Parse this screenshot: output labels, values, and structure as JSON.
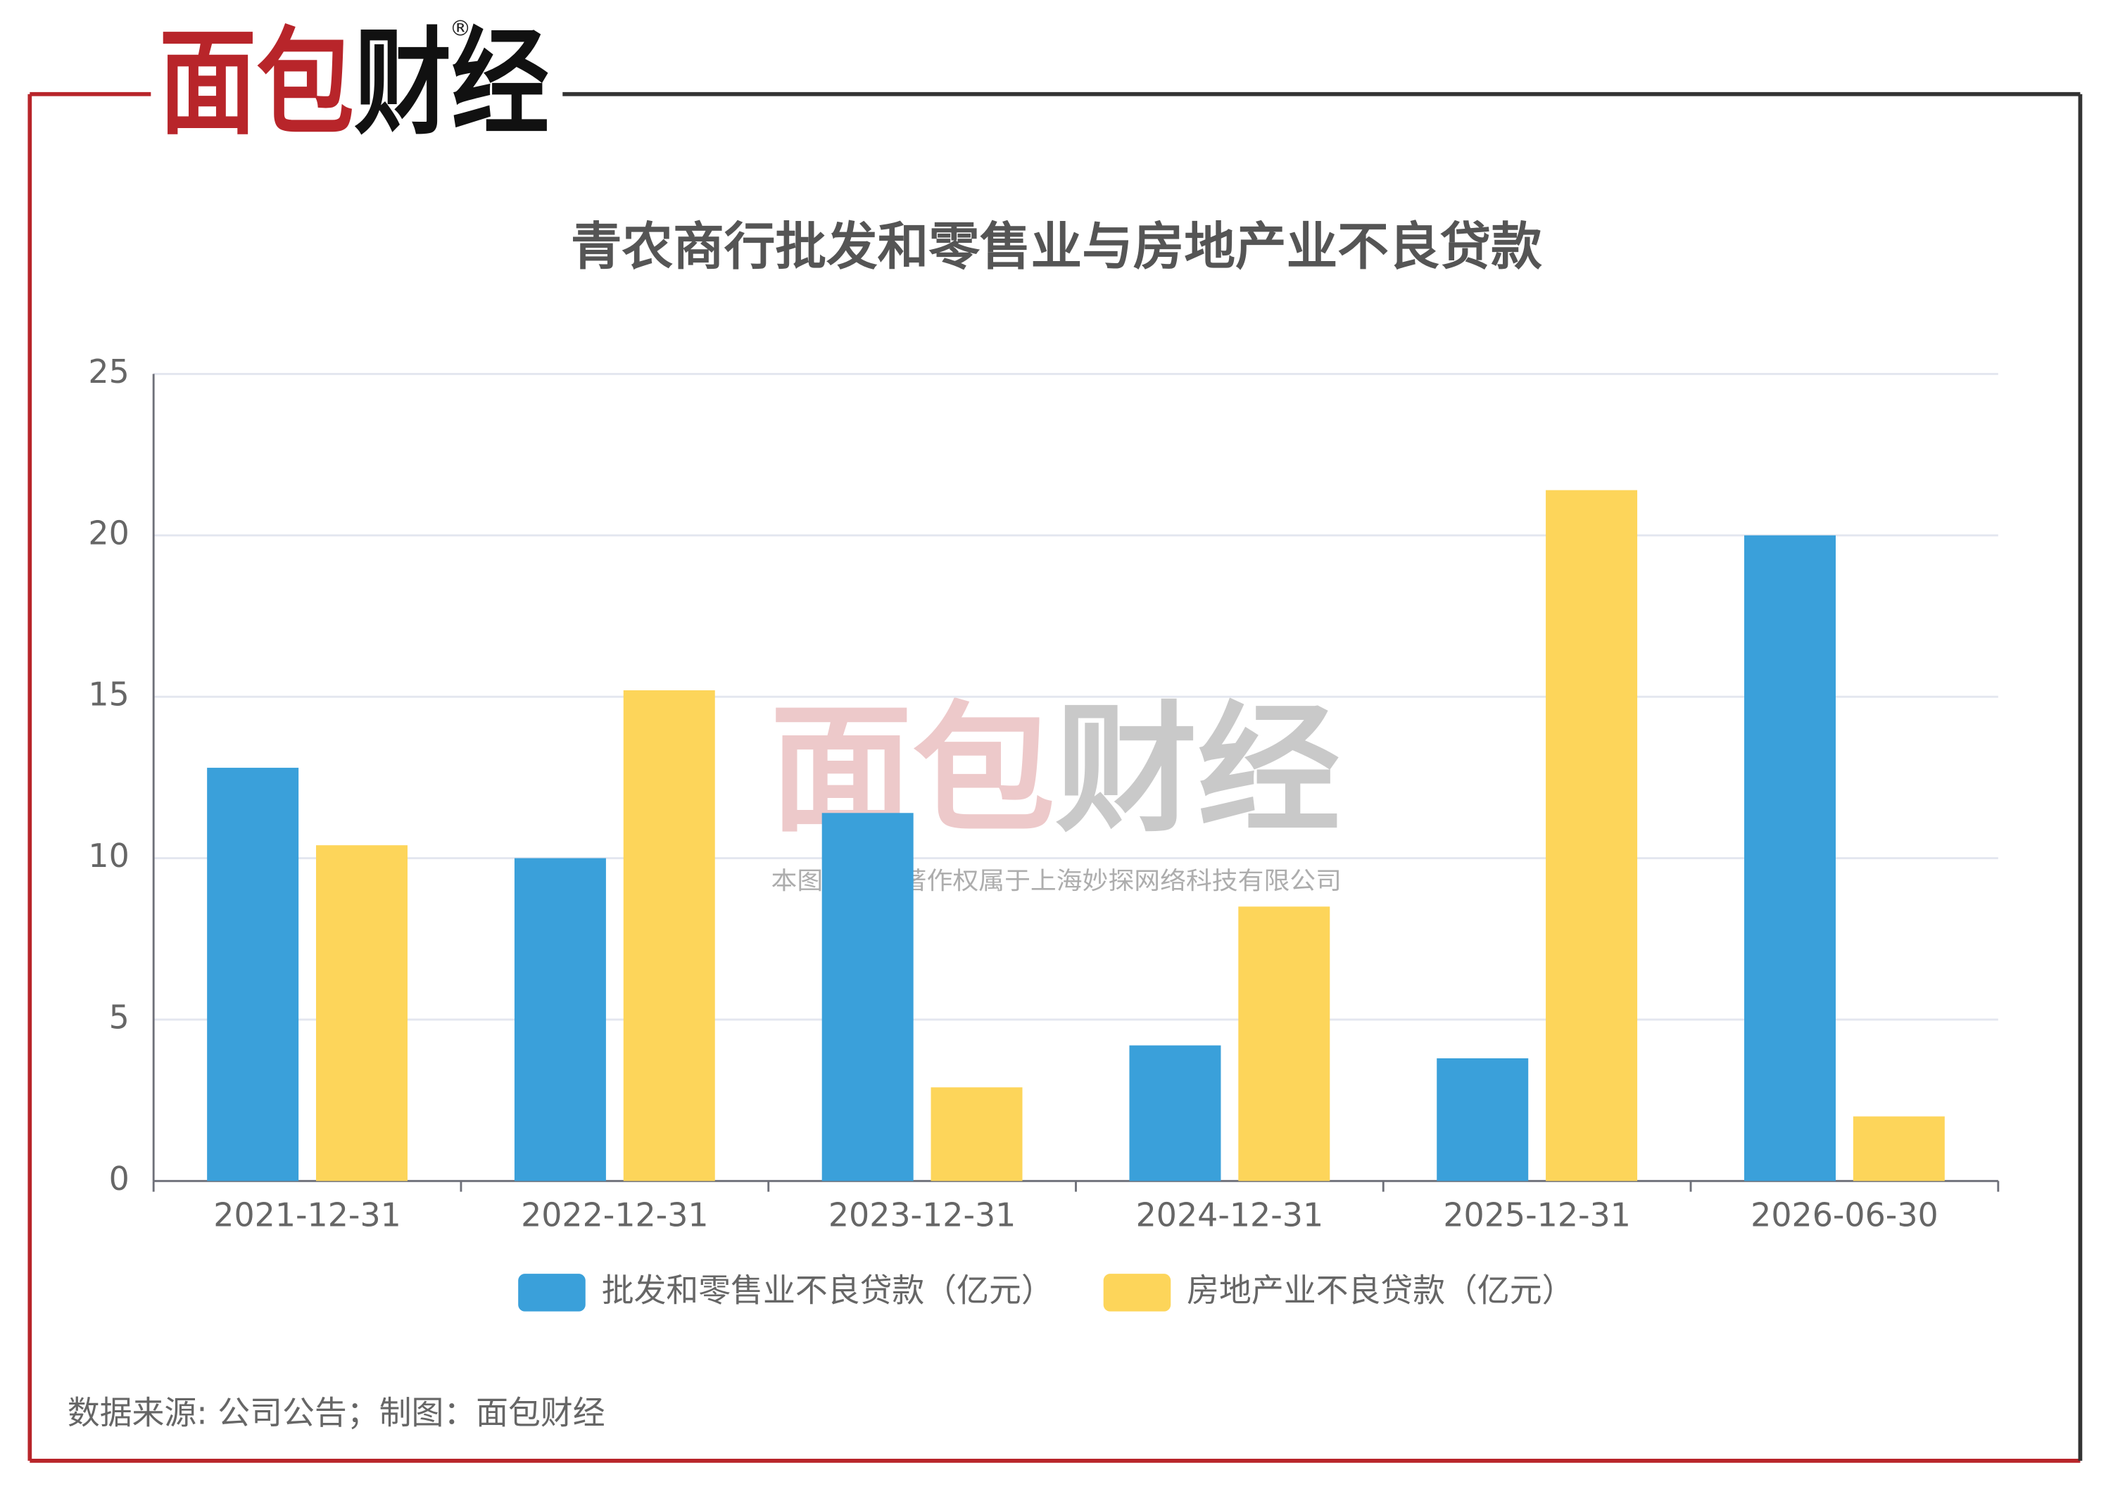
{
  "brand": "面包财经",
  "watermark": "本图表图片著作权属于上海妙探网络科技有限公司",
  "source": "数据来源: 公司公告；制图：面包财经",
  "chart_data": {
    "type": "bar",
    "title": "青农商行批发和零售业与房地产业不良贷款",
    "categories": [
      "2021-12-31",
      "2022-12-31",
      "2023-12-31",
      "2024-12-31",
      "2025-12-31",
      "2026-06-30"
    ],
    "series": [
      {
        "name": "批发和零售业不良贷款（亿元）",
        "color": "#3aa0da",
        "values": [
          12.8,
          10,
          11.4,
          4.2,
          3.8,
          20
        ]
      },
      {
        "name": "房地产业不良贷款（亿元）",
        "color": "#fdd55a",
        "values": [
          10.4,
          15.2,
          2.9,
          8.5,
          21.4,
          2.0
        ]
      }
    ],
    "ylim": [
      0,
      25
    ],
    "yticks": [
      0,
      5,
      10,
      15,
      20,
      25
    ],
    "grid": true,
    "legend": "bottom"
  }
}
